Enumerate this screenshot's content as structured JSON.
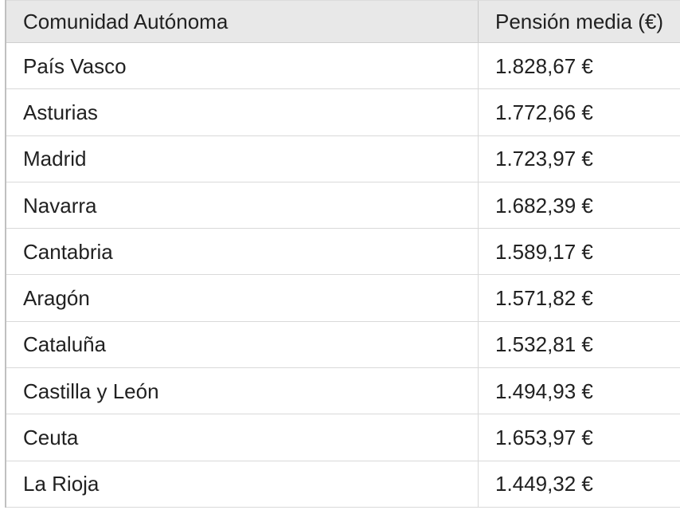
{
  "table": {
    "header": {
      "region_label": "Comunidad Autónoma",
      "pension_label": "Pensión media (€)"
    },
    "rows": [
      {
        "region": "País Vasco",
        "pension": "1.828,67 €"
      },
      {
        "region": "Asturias",
        "pension": "1.772,66 €"
      },
      {
        "region": "Madrid",
        "pension": "1.723,97 €"
      },
      {
        "region": "Navarra",
        "pension": "1.682,39 €"
      },
      {
        "region": "Cantabria",
        "pension": "1.589,17 €"
      },
      {
        "region": "Aragón",
        "pension": "1.571,82 €"
      },
      {
        "region": "Cataluña",
        "pension": "1.532,81 €"
      },
      {
        "region": "Castilla y León",
        "pension": "1.494,93 €"
      },
      {
        "region": "Ceuta",
        "pension": "1.653,97 €"
      },
      {
        "region": "La Rioja",
        "pension": "1.449,32 €"
      }
    ]
  },
  "chart_data": {
    "type": "table",
    "columns": [
      "Comunidad Autónoma",
      "Pensión media (€)"
    ],
    "categories": [
      "País Vasco",
      "Asturias",
      "Madrid",
      "Navarra",
      "Cantabria",
      "Aragón",
      "Cataluña",
      "Castilla y León",
      "Ceuta",
      "La Rioja"
    ],
    "values": [
      1828.67,
      1772.66,
      1723.97,
      1682.39,
      1589.17,
      1571.82,
      1532.81,
      1494.93,
      1653.97,
      1449.32
    ],
    "unit": "€"
  },
  "colors": {
    "header_bg": "#e8e8e8",
    "row_bg": "#ffffff",
    "border": "#d9d9d9",
    "header_border": "#cfcfcf",
    "left_border": "#c0c0c0",
    "text": "#212121"
  }
}
